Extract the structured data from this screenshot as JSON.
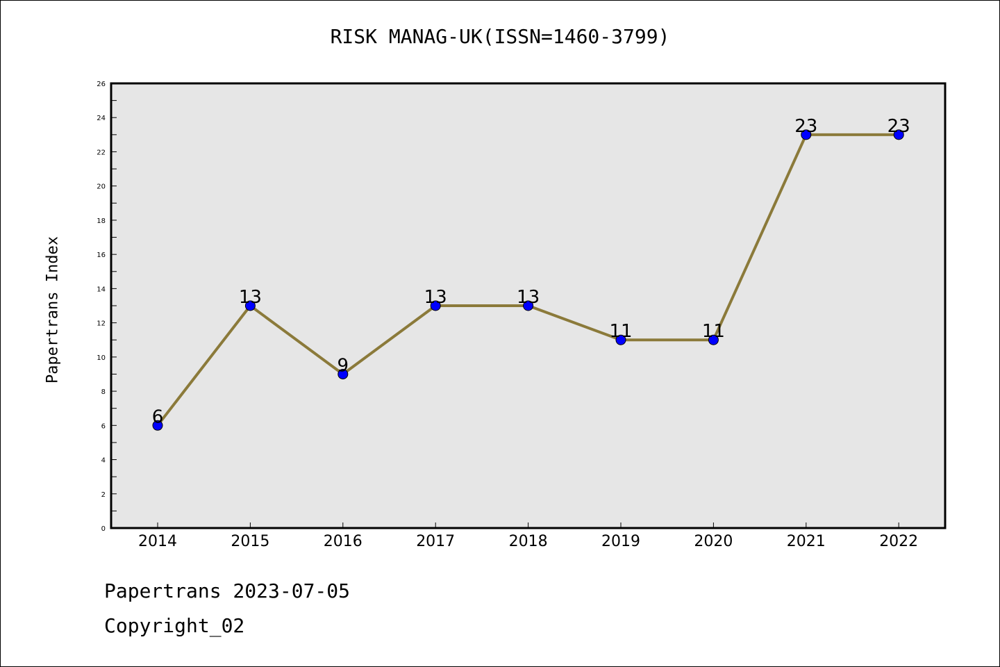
{
  "chart_data": {
    "type": "line",
    "title": "RISK MANAG-UK(ISSN=1460-3799)",
    "xlabel": "",
    "ylabel": "Papertrans Index",
    "categories": [
      "2014",
      "2015",
      "2016",
      "2017",
      "2018",
      "2019",
      "2020",
      "2021",
      "2022"
    ],
    "series": [
      {
        "values": [
          6,
          13,
          9,
          13,
          13,
          11,
          11,
          23,
          23
        ]
      }
    ],
    "ylim": [
      0,
      26
    ],
    "yticks": [
      0,
      2,
      4,
      6,
      8,
      10,
      12,
      14,
      16,
      18,
      20,
      22,
      24,
      26
    ],
    "grid": false,
    "data_labels": true,
    "colors": {
      "line": "#8b7a3a",
      "marker": "#0000ff",
      "plot_background": "#e6e6e6"
    }
  },
  "footer": {
    "line1": "Papertrans 2023-07-05",
    "line2": "Copyright_02"
  }
}
